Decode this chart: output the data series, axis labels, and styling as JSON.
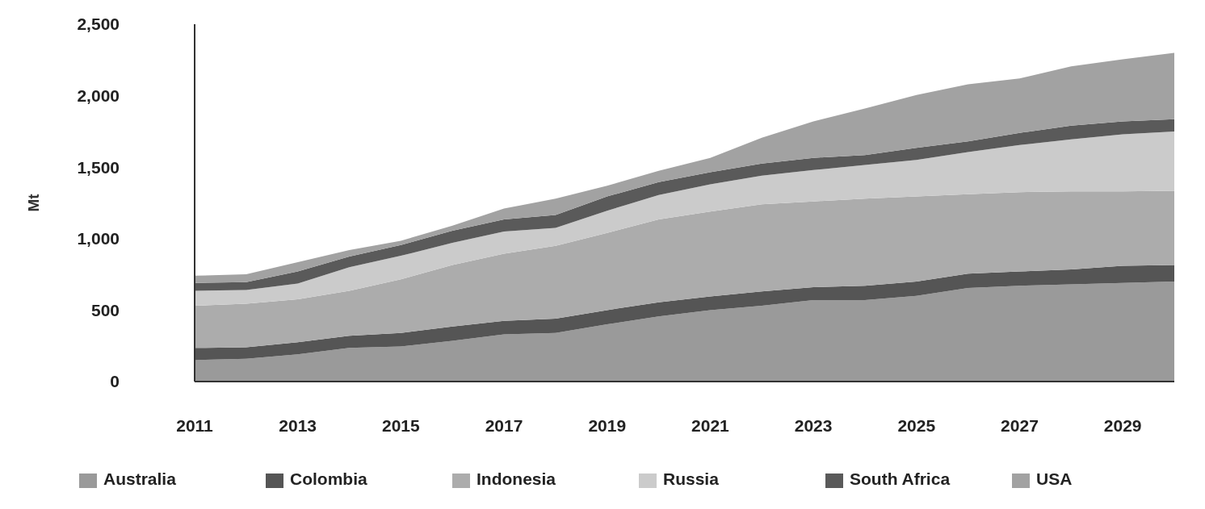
{
  "chart_data": {
    "type": "area",
    "stacked": true,
    "ylabel": "Mt",
    "x": [
      2011,
      2012,
      2013,
      2014,
      2015,
      2016,
      2017,
      2018,
      2019,
      2020,
      2021,
      2022,
      2023,
      2024,
      2025,
      2026,
      2027,
      2028,
      2029,
      2030
    ],
    "xlim": [
      2011,
      2030
    ],
    "xticks": [
      2011,
      2013,
      2015,
      2017,
      2019,
      2021,
      2023,
      2025,
      2027,
      2029
    ],
    "ylim": [
      0,
      2500
    ],
    "yticks": [
      0,
      {
        "value": 500,
        "label": "500"
      },
      {
        "value": 1000,
        "label": "1,000"
      },
      {
        "value": 1500,
        "label": "1,500"
      },
      {
        "value": 2000,
        "label": "2,000"
      },
      {
        "value": 2500,
        "label": "2,500"
      }
    ],
    "grid": false,
    "legend": "bottom",
    "series": [
      {
        "name": "Australia",
        "color": "#9a9a9a",
        "values": [
          150,
          160,
          190,
          235,
          245,
          285,
          330,
          340,
          400,
          455,
          500,
          530,
          570,
          570,
          600,
          655,
          670,
          680,
          690,
          700
        ]
      },
      {
        "name": "Colombia",
        "color": "#555555",
        "values": [
          85,
          80,
          85,
          85,
          95,
          100,
          95,
          100,
          100,
          100,
          95,
          100,
          90,
          100,
          100,
          100,
          100,
          105,
          120,
          115
        ]
      },
      {
        "name": "Indonesia",
        "color": "#acacac",
        "values": [
          295,
          305,
          300,
          315,
          375,
          430,
          470,
          510,
          540,
          580,
          595,
          610,
          600,
          610,
          595,
          555,
          555,
          545,
          520,
          520
        ]
      },
      {
        "name": "Russia",
        "color": "#cbcbcb",
        "values": [
          105,
          95,
          110,
          165,
          165,
          155,
          155,
          125,
          155,
          170,
          190,
          200,
          220,
          235,
          255,
          295,
          330,
          365,
          400,
          415
        ]
      },
      {
        "name": "South Africa",
        "color": "#5a5a5a",
        "values": [
          55,
          55,
          85,
          75,
          75,
          85,
          85,
          90,
          100,
          90,
          85,
          85,
          85,
          70,
          85,
          75,
          85,
          95,
          90,
          85
        ]
      },
      {
        "name": "USA",
        "color": "#a2a2a2",
        "values": [
          50,
          55,
          65,
          45,
          30,
          35,
          75,
          115,
          75,
          80,
          100,
          180,
          255,
          325,
          370,
          400,
          380,
          415,
          435,
          465
        ]
      }
    ]
  }
}
